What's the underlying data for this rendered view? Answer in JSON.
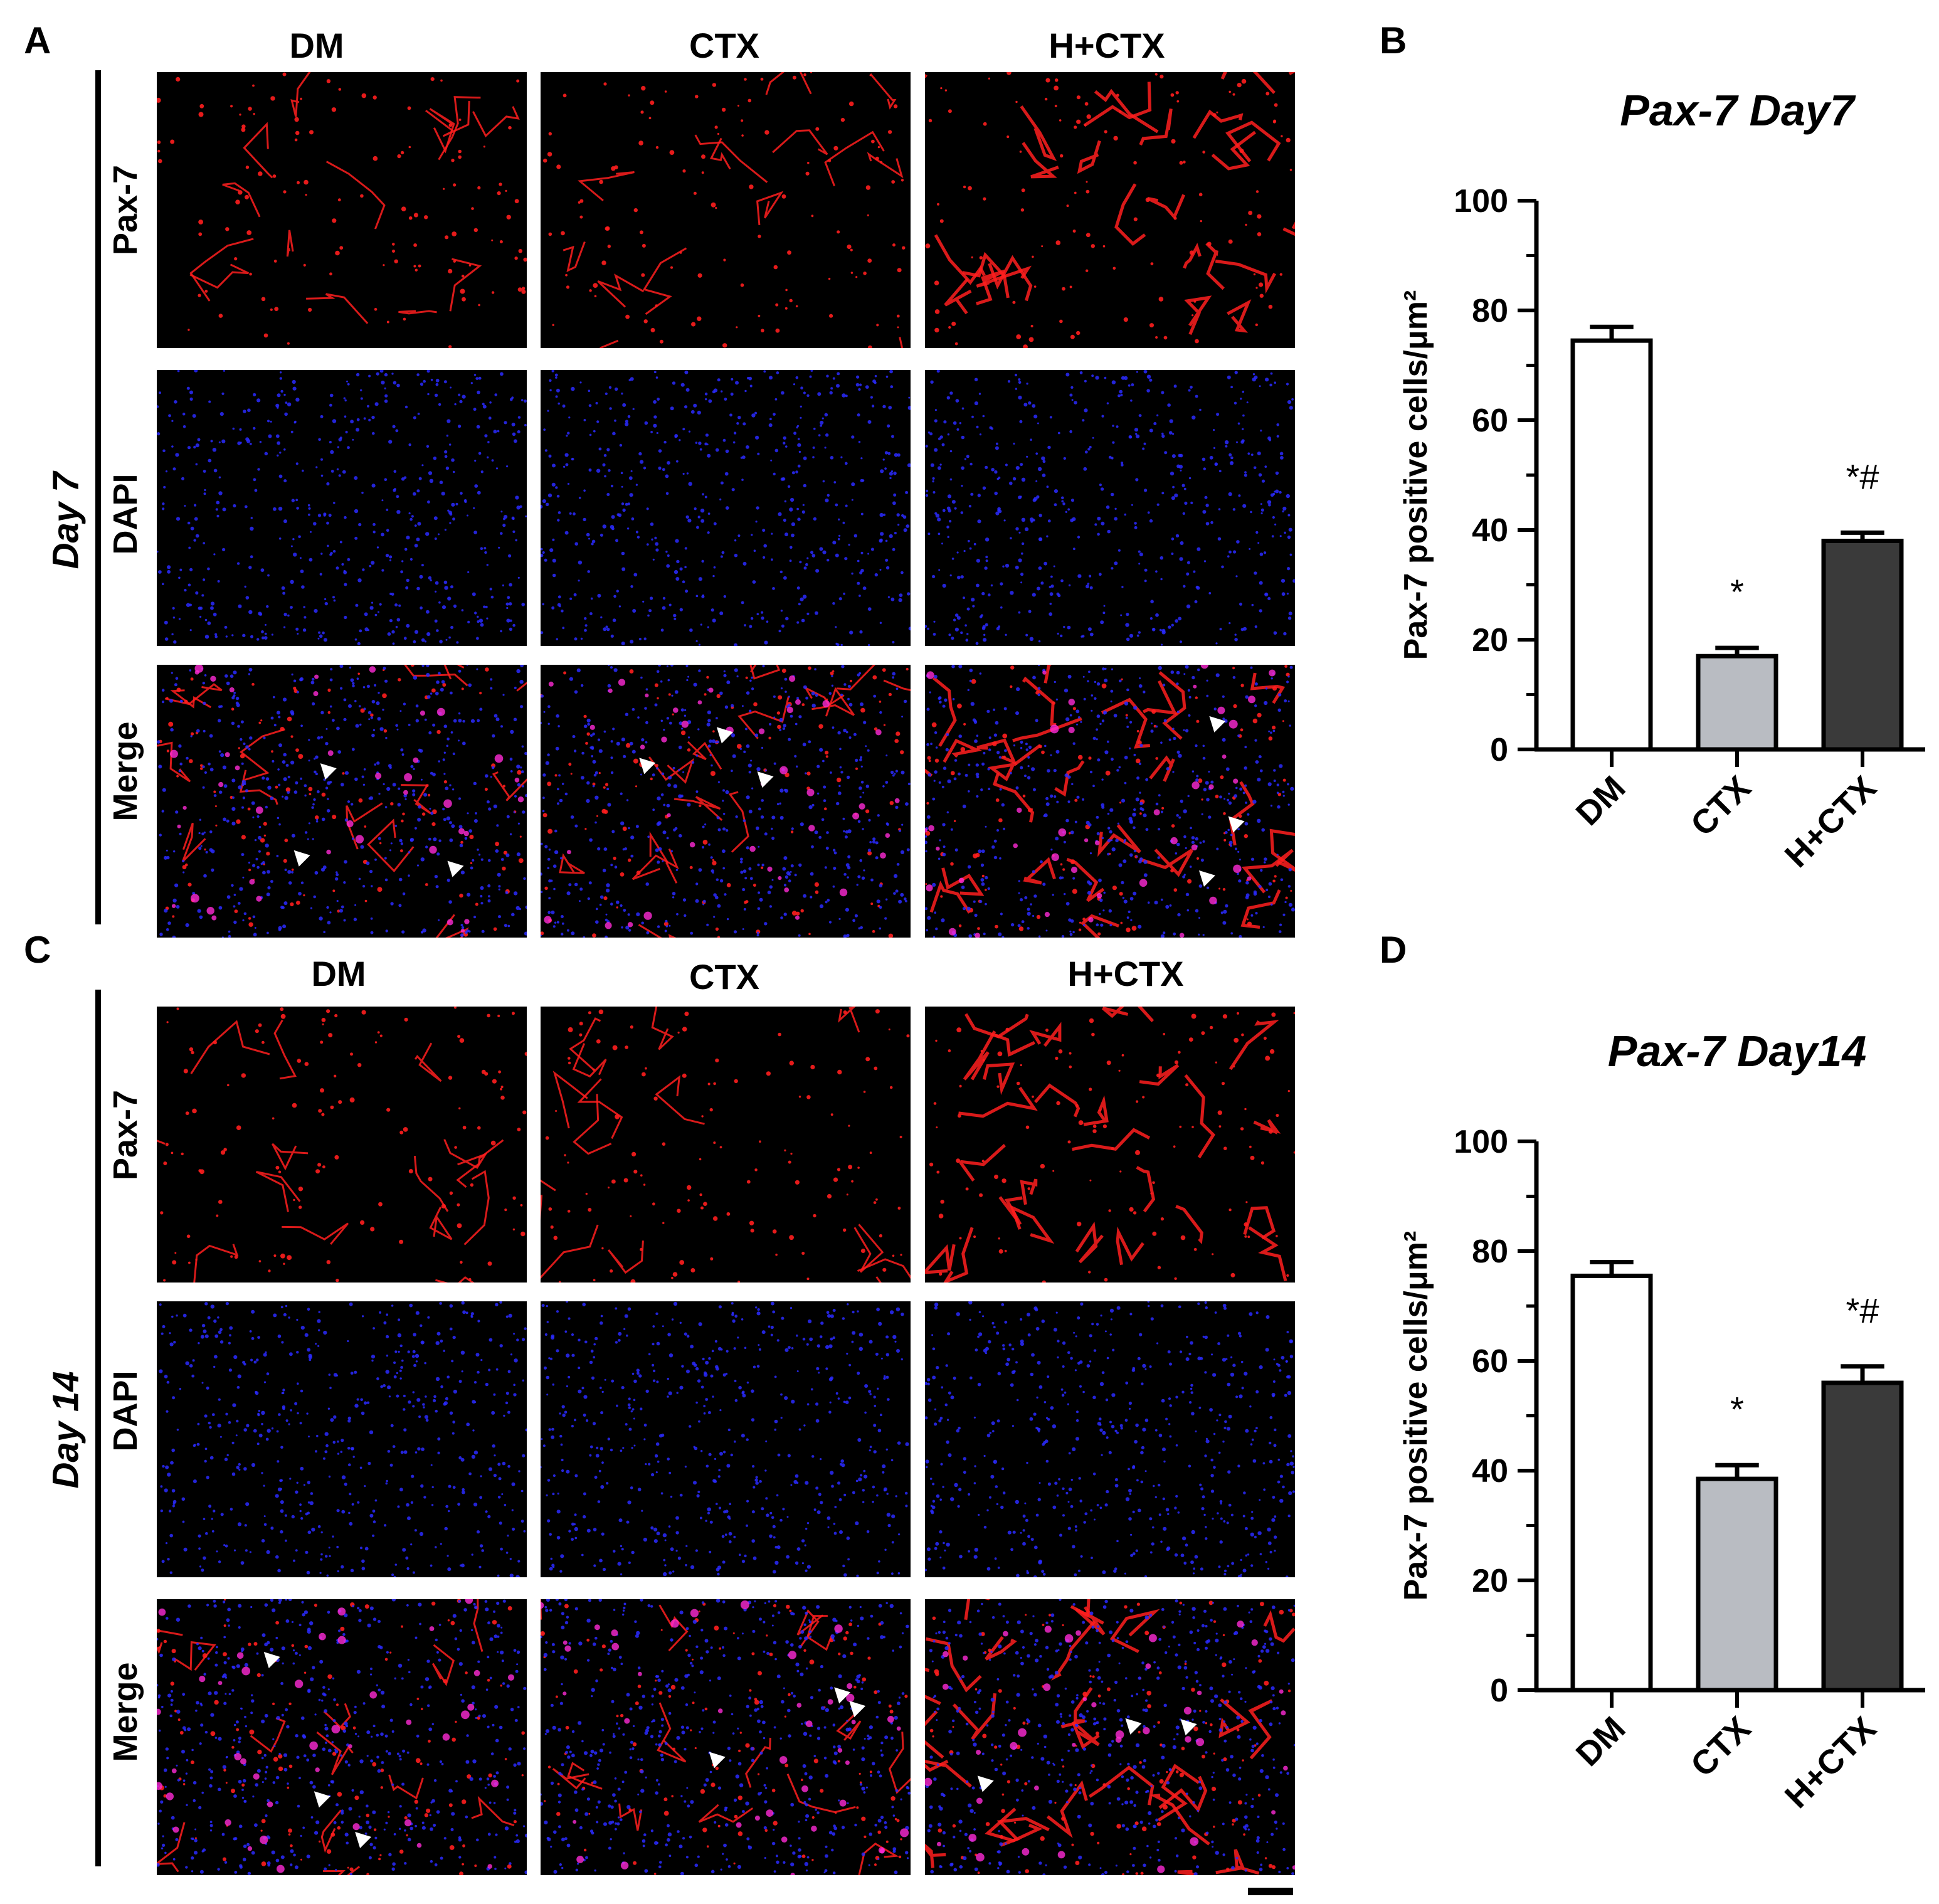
{
  "panels": {
    "A": "A",
    "B": "B",
    "C": "C",
    "D": "D"
  },
  "groups": [
    "DM",
    "CTX",
    "H+CTX"
  ],
  "day7": {
    "day_label": "Day 7",
    "rows": [
      "Pax-7",
      "DAPI",
      "Merge"
    ]
  },
  "day14": {
    "day_label": "Day 14",
    "rows": [
      "Pax-7",
      "DAPI",
      "Merge"
    ]
  },
  "colors": {
    "pax7": "#ff1e1e",
    "dapi": "#2a2aff",
    "merge_overlap": "#ff2bd6",
    "bar_dm": "#ffffff",
    "bar_ctx": "#b9bcc2",
    "bar_hctx": "#3a3a3a"
  },
  "chart_data": [
    {
      "type": "bar",
      "title": "Pax-7 Day7",
      "ylabel": "Pax-7 positive cells/μm²",
      "xlabel": "",
      "categories": [
        "DM",
        "CTX",
        "H+CTX"
      ],
      "values": [
        74.5,
        17,
        38
      ],
      "errors": [
        2.5,
        1.5,
        1.5
      ],
      "annotations": [
        "",
        "*",
        "*#"
      ],
      "ylim": [
        0,
        100
      ],
      "yticks": [
        0,
        20,
        40,
        60,
        80,
        100
      ],
      "grid": false
    },
    {
      "type": "bar",
      "title": "Pax-7 Day14",
      "ylabel": "Pax-7 positive cells/μm²",
      "xlabel": "",
      "categories": [
        "DM",
        "CTX",
        "H+CTX"
      ],
      "values": [
        75.5,
        38.5,
        56
      ],
      "errors": [
        2.5,
        2.5,
        3
      ],
      "annotations": [
        "",
        "*",
        "*#"
      ],
      "ylim": [
        0,
        100
      ],
      "yticks": [
        0,
        20,
        40,
        60,
        80,
        100
      ],
      "grid": false
    }
  ]
}
